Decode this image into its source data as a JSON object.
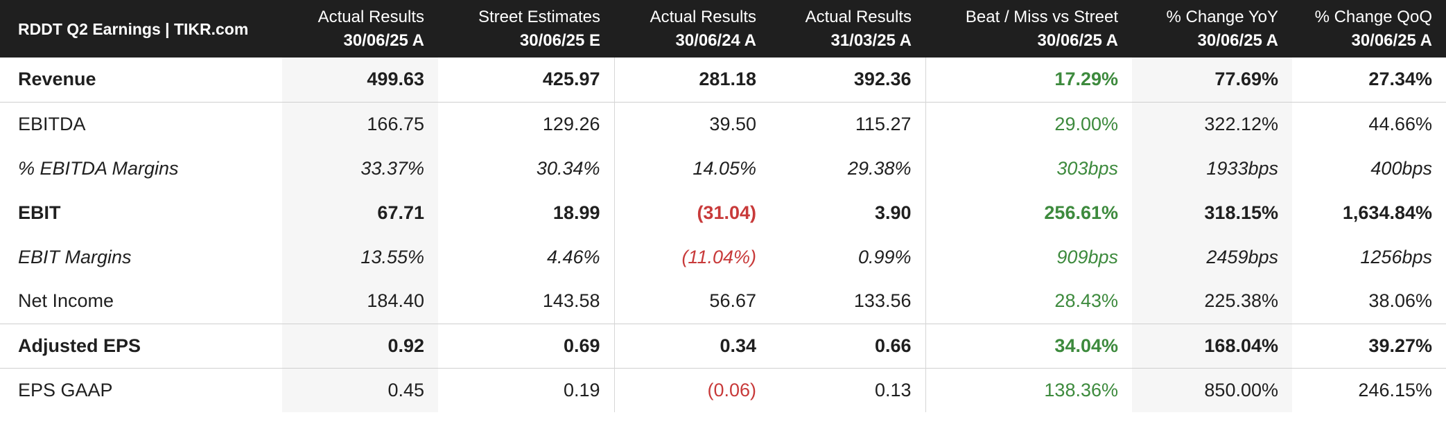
{
  "chart_data": {
    "type": "table",
    "title": "RDDT Q2 Earnings | TIKR.com",
    "columns": [
      {
        "line1": "Actual Results",
        "line2": "30/06/25 A"
      },
      {
        "line1": "Street Estimates",
        "line2": "30/06/25 E"
      },
      {
        "line1": "Actual Results",
        "line2": "30/06/24 A"
      },
      {
        "line1": "Actual Results",
        "line2": "31/03/25 A"
      },
      {
        "line1": "Beat / Miss vs Street",
        "line2": "30/06/25 A"
      },
      {
        "line1": "% Change YoY",
        "line2": "30/06/25 A"
      },
      {
        "line1": "% Change QoQ",
        "line2": "30/06/25 A"
      }
    ],
    "rows": [
      {
        "label": "Revenue",
        "style": "bold",
        "values": [
          "499.63",
          "425.97",
          "281.18",
          "392.36",
          "17.29%",
          "77.69%",
          "27.34%"
        ]
      },
      {
        "label": "EBITDA",
        "style": "normal",
        "values": [
          "166.75",
          "129.26",
          "39.50",
          "115.27",
          "29.00%",
          "322.12%",
          "44.66%"
        ]
      },
      {
        "label": "% EBITDA Margins",
        "style": "italic",
        "values": [
          "33.37%",
          "30.34%",
          "14.05%",
          "29.38%",
          "303bps",
          "1933bps",
          "400bps"
        ]
      },
      {
        "label": "EBIT",
        "style": "bold",
        "values": [
          "67.71",
          "18.99",
          "(31.04)",
          "3.90",
          "256.61%",
          "318.15%",
          "1,634.84%"
        ]
      },
      {
        "label": "EBIT Margins",
        "style": "italic",
        "values": [
          "13.55%",
          "4.46%",
          "(11.04%)",
          "0.99%",
          "909bps",
          "2459bps",
          "1256bps"
        ]
      },
      {
        "label": "Net Income",
        "style": "normal",
        "values": [
          "184.40",
          "143.58",
          "56.67",
          "133.56",
          "28.43%",
          "225.38%",
          "38.06%"
        ]
      },
      {
        "label": "Adjusted EPS",
        "style": "bold",
        "values": [
          "0.92",
          "0.69",
          "0.34",
          "0.66",
          "34.04%",
          "168.04%",
          "39.27%"
        ]
      },
      {
        "label": "EPS GAAP",
        "style": "normal",
        "values": [
          "0.45",
          "0.19",
          "(0.06)",
          "0.13",
          "138.36%",
          "850.00%",
          "246.15%"
        ]
      }
    ],
    "colors": {
      "header_bg": "#1f1f1f",
      "positive": "#3d8a3d",
      "negative": "#c83a3a",
      "shaded_column": "#f6f6f6"
    }
  }
}
